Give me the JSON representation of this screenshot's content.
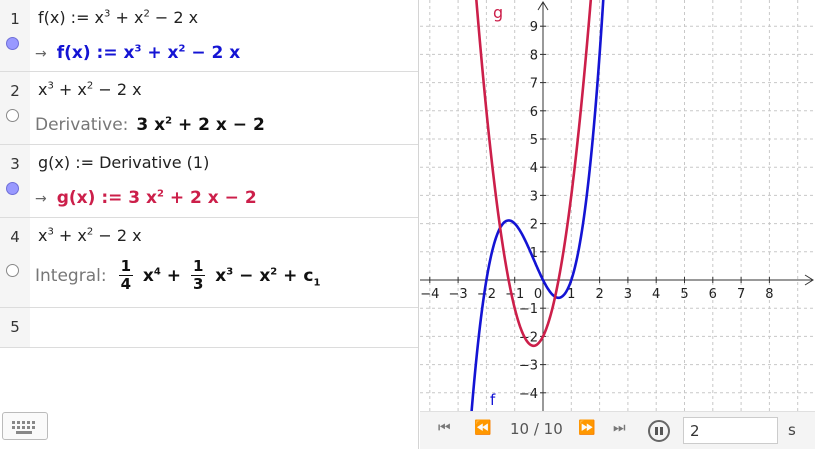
{
  "cas": {
    "rows": [
      {
        "num": "1",
        "input_html": "f(x) := x<sup>3</sup> + x<sup>2</sup> &minus; 2 x",
        "arrow": "→",
        "output_html": "f(x) := x<sup>3</sup> + x<sup>2</sup> &minus; 2 x",
        "output_color": "blue",
        "bullet": "on"
      },
      {
        "num": "2",
        "input_html": "x<sup>3</sup> + x<sup>2</sup> &minus; 2 x",
        "label": "Derivative:",
        "output_html": "3 x<sup>2</sup> + 2 x &minus; 2",
        "output_color": "black",
        "bullet": "off"
      },
      {
        "num": "3",
        "input_html": "g(x) := Derivative (1)",
        "arrow": "→",
        "output_html": "g(x) := 3 x<sup>2</sup> + 2 x &minus; 2",
        "output_color": "red",
        "bullet": "on"
      },
      {
        "num": "4",
        "input_html": "x<sup>3</sup> + x<sup>2</sup> &minus; 2 x",
        "label": "Integral:",
        "bullet": "off",
        "output_html": "<span class='frac'><span class='n'>1</span><span class='d'>4</span></span> x<sup>4</sup> + <span class='frac'><span class='n'>1</span><span class='d'>3</span></span> x<sup>3</sup> &minus; x<sup>2</sup> + c<sub>1</sub>",
        "output_color": "black"
      },
      {
        "num": "5"
      }
    ]
  },
  "graph": {
    "xmin": -4,
    "xmax": 8,
    "ymin": -4,
    "ymax": 9,
    "x_ticks": [
      "-4",
      "-3",
      "-2",
      "-1",
      "0",
      "1",
      "2",
      "3",
      "4",
      "5",
      "6",
      "7",
      "8"
    ],
    "y_ticks": [
      "-4",
      "-3",
      "-2",
      "-1",
      "1",
      "2",
      "3",
      "4",
      "5",
      "6",
      "7",
      "8",
      "9"
    ],
    "functions": [
      {
        "name": "f",
        "label": "f",
        "expr": "x^3 + x^2 - 2x",
        "color": "#1414d4"
      },
      {
        "name": "g",
        "label": "g",
        "expr": "3x^2 + 2x - 2",
        "color": "#cc1f4a"
      }
    ]
  },
  "toolbar": {
    "first_icon": "⏮",
    "prev_icon": "⏪",
    "counter": "10 / 10",
    "next_icon": "⏩",
    "last_icon": "⏭",
    "speed_value": "2",
    "unit": "s"
  },
  "keyboard_icon": "keyboard-icon"
}
